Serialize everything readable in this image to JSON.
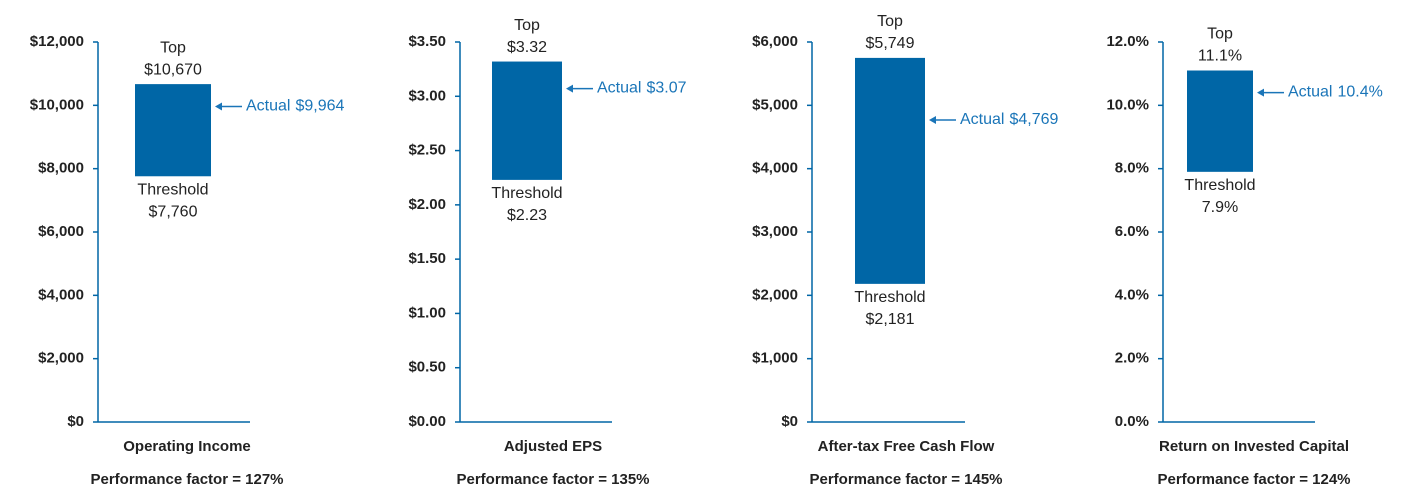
{
  "chart_data": [
    {
      "type": "range",
      "title": "Operating Income",
      "subtitle": "Performance factor = 127%",
      "high_label": "Top",
      "low_label": "Threshold",
      "actual_label": "Actual",
      "low": 7760,
      "high": 10670,
      "actual": 9964,
      "value_labels": {
        "low": "$7,760",
        "high": "$10,670",
        "actual": "$9,964"
      },
      "color": "#0066a6",
      "ylim": [
        0,
        12000
      ],
      "yticks": [
        {
          "value": 0,
          "label": "$0"
        },
        {
          "value": 2000,
          "label": "$2,000"
        },
        {
          "value": 4000,
          "label": "$4,000"
        },
        {
          "value": 6000,
          "label": "$6,000"
        },
        {
          "value": 8000,
          "label": "$8,000"
        },
        {
          "value": 10000,
          "label": "$10,000"
        },
        {
          "value": 12000,
          "label": "$12,000"
        }
      ]
    },
    {
      "type": "range",
      "title": "Adjusted EPS",
      "subtitle": "Performance factor = 135%",
      "high_label": "Top",
      "low_label": "Threshold",
      "actual_label": "Actual",
      "low": 2.23,
      "high": 3.32,
      "actual": 3.07,
      "value_labels": {
        "low": "$2.23",
        "high": "$3.32",
        "actual": "$3.07"
      },
      "color": "#0066a6",
      "ylim": [
        0,
        3.5
      ],
      "yticks": [
        {
          "value": 0,
          "label": "$0.00"
        },
        {
          "value": 0.5,
          "label": "$0.50"
        },
        {
          "value": 1,
          "label": "$1.00"
        },
        {
          "value": 1.5,
          "label": "$1.50"
        },
        {
          "value": 2,
          "label": "$2.00"
        },
        {
          "value": 2.5,
          "label": "$2.50"
        },
        {
          "value": 3,
          "label": "$3.00"
        },
        {
          "value": 3.5,
          "label": "$3.50"
        }
      ]
    },
    {
      "type": "range",
      "title": "After-tax Free Cash Flow",
      "subtitle": "Performance factor = 145%",
      "high_label": "Top",
      "low_label": "Threshold",
      "actual_label": "Actual",
      "low": 2181,
      "high": 5749,
      "actual": 4769,
      "value_labels": {
        "low": "$2,181",
        "high": "$5,749",
        "actual": "$4,769"
      },
      "color": "#0066a6",
      "ylim": [
        0,
        6000
      ],
      "yticks": [
        {
          "value": 0,
          "label": "$0"
        },
        {
          "value": 1000,
          "label": "$1,000"
        },
        {
          "value": 2000,
          "label": "$2,000"
        },
        {
          "value": 3000,
          "label": "$3,000"
        },
        {
          "value": 4000,
          "label": "$4,000"
        },
        {
          "value": 5000,
          "label": "$5,000"
        },
        {
          "value": 6000,
          "label": "$6,000"
        }
      ]
    },
    {
      "type": "range",
      "title": "Return on Invested Capital",
      "subtitle": "Performance factor = 124%",
      "high_label": "Top",
      "low_label": "Threshold",
      "actual_label": "Actual",
      "low": 7.9,
      "high": 11.1,
      "actual": 10.4,
      "value_labels": {
        "low": "7.9%",
        "high": "11.1%",
        "actual": "10.4%"
      },
      "color": "#0066a6",
      "ylim": [
        0,
        12
      ],
      "yticks": [
        {
          "value": 0,
          "label": "0.0%"
        },
        {
          "value": 2,
          "label": "2.0%"
        },
        {
          "value": 4,
          "label": "4.0%"
        },
        {
          "value": 6,
          "label": "6.0%"
        },
        {
          "value": 8,
          "label": "8.0%"
        },
        {
          "value": 10,
          "label": "10.0%"
        },
        {
          "value": 12,
          "label": "12.0%"
        }
      ]
    }
  ]
}
